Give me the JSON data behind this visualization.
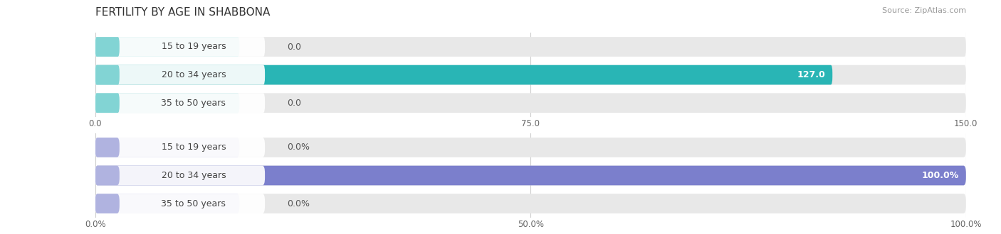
{
  "title": "FERTILITY BY AGE IN SHABBONA",
  "source": "Source: ZipAtlas.com",
  "top_chart": {
    "categories": [
      "15 to 19 years",
      "20 to 34 years",
      "35 to 50 years"
    ],
    "values": [
      0.0,
      127.0,
      0.0
    ],
    "xlim": [
      0,
      150
    ],
    "xticks": [
      0.0,
      75.0,
      150.0
    ],
    "bar_color": "#29b5b5",
    "bar_light_color": "#82d4d4",
    "bg_color": "#e8e8e8",
    "row_bg": "#f0f0f0"
  },
  "bottom_chart": {
    "categories": [
      "15 to 19 years",
      "20 to 34 years",
      "35 to 50 years"
    ],
    "values": [
      0.0,
      100.0,
      0.0
    ],
    "xlim": [
      0,
      100
    ],
    "xticks": [
      0.0,
      50.0,
      100.0
    ],
    "bar_color": "#7b7fcc",
    "bar_light_color": "#b0b3e0",
    "bg_color": "#e8e8e8",
    "row_bg": "#f0f0f0"
  },
  "figure_bg": "#ffffff",
  "title_fontsize": 11,
  "label_fontsize": 9,
  "tick_fontsize": 8.5,
  "source_fontsize": 8
}
